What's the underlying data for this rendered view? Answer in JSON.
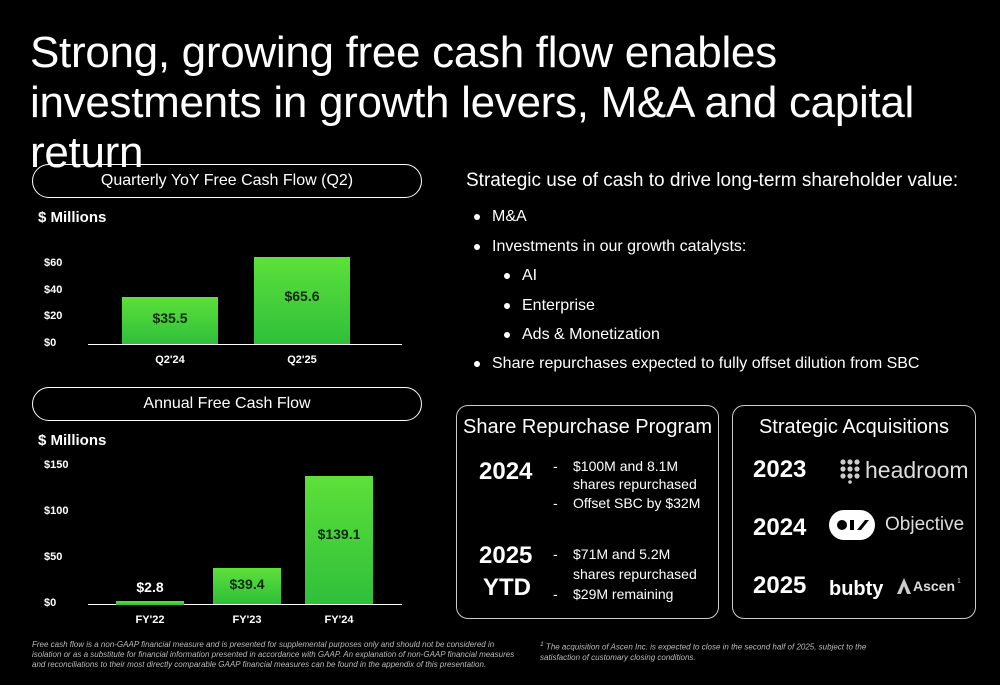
{
  "title": "Strong, growing free cash flow enables investments in growth levers, M&A and capital return",
  "chart_data": [
    {
      "type": "bar",
      "title": "Quarterly YoY Free Cash Flow (Q2)",
      "ylabel": "$ Millions",
      "categories": [
        "Q2'24",
        "Q2'25"
      ],
      "values": [
        35.5,
        65.6
      ],
      "value_labels": [
        "$35.5",
        "$65.6"
      ],
      "yticks": [
        "$0",
        "$20",
        "$40",
        "$60"
      ],
      "ylim": [
        0,
        70
      ],
      "grid": false
    },
    {
      "type": "bar",
      "title": "Annual Free Cash Flow",
      "ylabel": "$ Millions",
      "categories": [
        "FY'22",
        "FY'23",
        "FY'24"
      ],
      "values": [
        2.8,
        39.4,
        139.1
      ],
      "value_labels": [
        "$2.8",
        "$39.4",
        "$139.1"
      ],
      "yticks": [
        "$0",
        "$50",
        "$100",
        "$150"
      ],
      "ylim": [
        0,
        150
      ],
      "grid": false
    }
  ],
  "strategy": {
    "heading": "Strategic use of cash to drive long-term shareholder value:",
    "bullets": [
      "M&A",
      "Investments in our growth catalysts:",
      "AI",
      "Enterprise",
      "Ads & Monetization",
      "Share repurchases expected to fully offset dilution from SBC"
    ]
  },
  "repurchase": {
    "title": "Share Repurchase Program",
    "year1": "2024",
    "y1_line1": "$100M and 8.1M",
    "y1_line2": "shares repurchased",
    "y1_line3": "Offset SBC by $32M",
    "year2a": "2025",
    "year2b": "YTD",
    "y2_line1": "$71M and 5.2M",
    "y2_line2": "shares repurchased",
    "y2_line3": "$29M remaining",
    "dash": "-"
  },
  "acquisitions": {
    "title": "Strategic Acquisitions",
    "year1": "2023",
    "logo1": "headroom",
    "year2": "2024",
    "logo2": "Objective",
    "year3": "2025",
    "logo3a": "bubty",
    "logo3b": "Ascen",
    "footmark": "1"
  },
  "footnotes": {
    "left1": "Free cash flow is a non-GAAP financial measure and is presented for supplemental purposes only and should not be considered in",
    "left2": "isolation or as a substitute for financial information presented in accordance with GAAP. An explanation of non-GAAP financial measures",
    "left3": "and reconciliations to their most directly comparable GAAP financial measures can be found in the appendix of this presentation.",
    "right_mark": "1",
    "right1": " The acquisition of Ascen Inc. is expected to close in the second half of 2025, subject to the",
    "right2": "satisfaction of customary closing conditions."
  },
  "colors": {
    "bar": "#3fcf3a",
    "background": "#000000"
  }
}
